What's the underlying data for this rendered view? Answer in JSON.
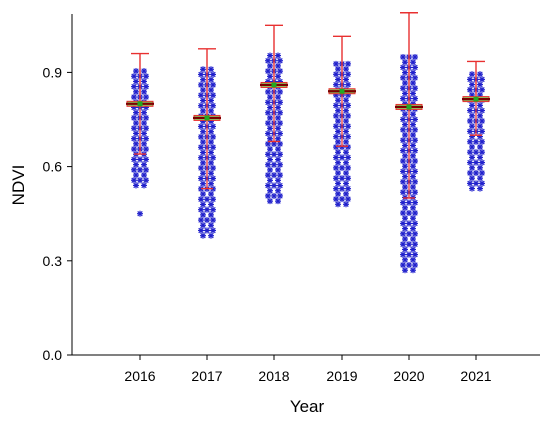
{
  "chart_data": {
    "type": "scatter",
    "xlabel": "Year",
    "ylabel": "NDVI",
    "categories": [
      "2016",
      "2017",
      "2018",
      "2019",
      "2020",
      "2021"
    ],
    "ylim": [
      0.0,
      1.1
    ],
    "yticks": [
      "0.0",
      "0.3",
      "0.6",
      "0.9"
    ],
    "ytick_values": [
      0.0,
      0.3,
      0.6,
      0.9
    ],
    "grid": false,
    "colors": {
      "points": "#2222cc",
      "error_bar": "#e83030",
      "mean_line": "#7a0000",
      "mean_box": "#90c060",
      "mean_marker": "#22aa22"
    },
    "series": [
      {
        "category": "2016",
        "points_min": 0.54,
        "points_max": 0.91,
        "outliers": [
          0.45
        ],
        "mean": 0.8,
        "error_upper": 0.96,
        "error_lower": 0.64
      },
      {
        "category": "2017",
        "points_min": 0.38,
        "points_max": 0.91,
        "outliers": [],
        "mean": 0.755,
        "error_upper": 0.975,
        "error_lower": 0.53
      },
      {
        "category": "2018",
        "points_min": 0.49,
        "points_max": 0.97,
        "outliers": [],
        "mean": 0.86,
        "error_upper": 1.05,
        "error_lower": 0.68
      },
      {
        "category": "2019",
        "points_min": 0.48,
        "points_max": 0.93,
        "outliers": [],
        "mean": 0.84,
        "error_upper": 1.015,
        "error_lower": 0.665
      },
      {
        "category": "2020",
        "points_min": 0.27,
        "points_max": 0.95,
        "outliers": [],
        "mean": 0.79,
        "error_upper": 1.09,
        "error_lower": 0.5
      },
      {
        "category": "2021",
        "points_min": 0.53,
        "points_max": 0.9,
        "outliers": [],
        "mean": 0.815,
        "error_upper": 0.935,
        "error_lower": 0.7
      }
    ]
  }
}
